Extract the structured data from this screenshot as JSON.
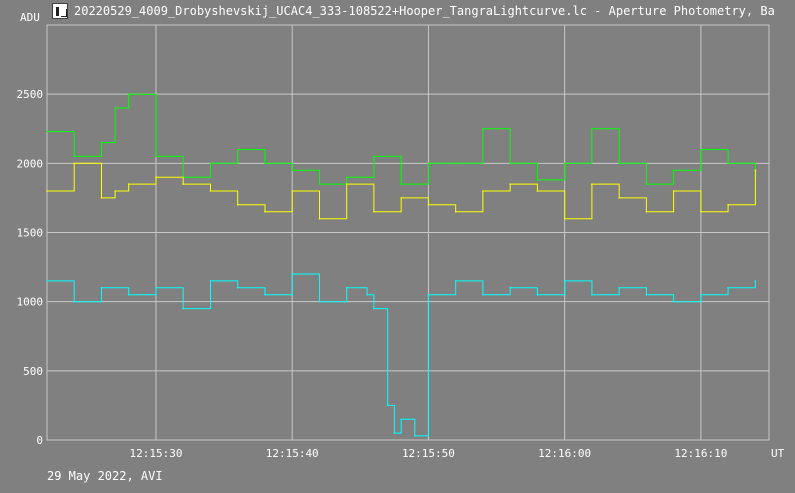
{
  "window": {
    "title": "20220529_4009_Drobyshevskij_UCAC4_333-108522+Hooper_TangraLightcurve.lc - Aperture Photometry, Ba"
  },
  "footer_text": "29 May 2022, AVI",
  "colors": {
    "background": "#808080",
    "grid": "#c8c8c8",
    "series_green": "#00ff00",
    "series_yellow": "#ffff00",
    "series_cyan": "#00ffff"
  },
  "chart_data": {
    "type": "line",
    "title": "",
    "ylabel": "ADU",
    "xlabel": "UT",
    "ylim": [
      0,
      3000
    ],
    "xlim": [
      "12:15:22",
      "12:16:15"
    ],
    "grid": true,
    "y_ticks": [
      "0",
      "500",
      "1000",
      "1500",
      "2000",
      "2500"
    ],
    "x_ticks": [
      "12:15:30",
      "12:15:40",
      "12:15:50",
      "12:16:00",
      "12:16:10"
    ],
    "series": [
      {
        "color": "#00ff00",
        "x": [
          "12:15:22",
          "12:15:24",
          "12:15:26",
          "12:15:27",
          "12:15:28",
          "12:15:30",
          "12:15:32",
          "12:15:34",
          "12:15:36",
          "12:15:38",
          "12:15:40",
          "12:15:42",
          "12:15:44",
          "12:15:46",
          "12:15:48",
          "12:15:50",
          "12:15:52",
          "12:15:54",
          "12:15:56",
          "12:15:58",
          "12:16:00",
          "12:16:02",
          "12:16:04",
          "12:16:06",
          "12:16:08",
          "12:16:10",
          "12:16:12",
          "12:16:14"
        ],
        "values": [
          2230,
          2050,
          2150,
          2400,
          2500,
          2050,
          1900,
          2000,
          2100,
          2000,
          1950,
          1850,
          1900,
          2050,
          1850,
          2000,
          2000,
          2250,
          2000,
          1880,
          2000,
          2250,
          2000,
          1850,
          1950,
          2100,
          2000,
          1900
        ]
      },
      {
        "color": "#ffff00",
        "x": [
          "12:15:22",
          "12:15:24",
          "12:15:26",
          "12:15:27",
          "12:15:28",
          "12:15:30",
          "12:15:32",
          "12:15:34",
          "12:15:36",
          "12:15:38",
          "12:15:40",
          "12:15:42",
          "12:15:44",
          "12:15:46",
          "12:15:48",
          "12:15:50",
          "12:15:52",
          "12:15:54",
          "12:15:56",
          "12:15:58",
          "12:16:00",
          "12:16:02",
          "12:16:04",
          "12:16:06",
          "12:16:08",
          "12:16:10",
          "12:16:12",
          "12:16:14"
        ],
        "values": [
          1800,
          2000,
          1750,
          1800,
          1850,
          1900,
          1850,
          1800,
          1700,
          1650,
          1800,
          1600,
          1850,
          1650,
          1750,
          1700,
          1650,
          1800,
          1850,
          1800,
          1600,
          1850,
          1750,
          1650,
          1800,
          1650,
          1700,
          1950
        ]
      },
      {
        "color": "#00ffff",
        "x": [
          "12:15:22",
          "12:15:24",
          "12:15:26",
          "12:15:28",
          "12:15:30",
          "12:15:32",
          "12:15:34",
          "12:15:36",
          "12:15:38",
          "12:15:40",
          "12:15:42",
          "12:15:44",
          "12:15:45.5",
          "12:15:46",
          "12:15:47",
          "12:15:47.5",
          "12:15:48",
          "12:15:49",
          "12:15:50",
          "12:15:52",
          "12:15:54",
          "12:15:56",
          "12:15:58",
          "12:16:00",
          "12:16:02",
          "12:16:04",
          "12:16:06",
          "12:16:08",
          "12:16:10",
          "12:16:12",
          "12:16:14"
        ],
        "values": [
          1150,
          1000,
          1100,
          1050,
          1100,
          950,
          1150,
          1100,
          1050,
          1200,
          1000,
          1100,
          1050,
          950,
          250,
          50,
          150,
          30,
          1050,
          1150,
          1050,
          1100,
          1050,
          1150,
          1050,
          1100,
          1050,
          1000,
          1050,
          1100,
          1150
        ]
      }
    ]
  }
}
